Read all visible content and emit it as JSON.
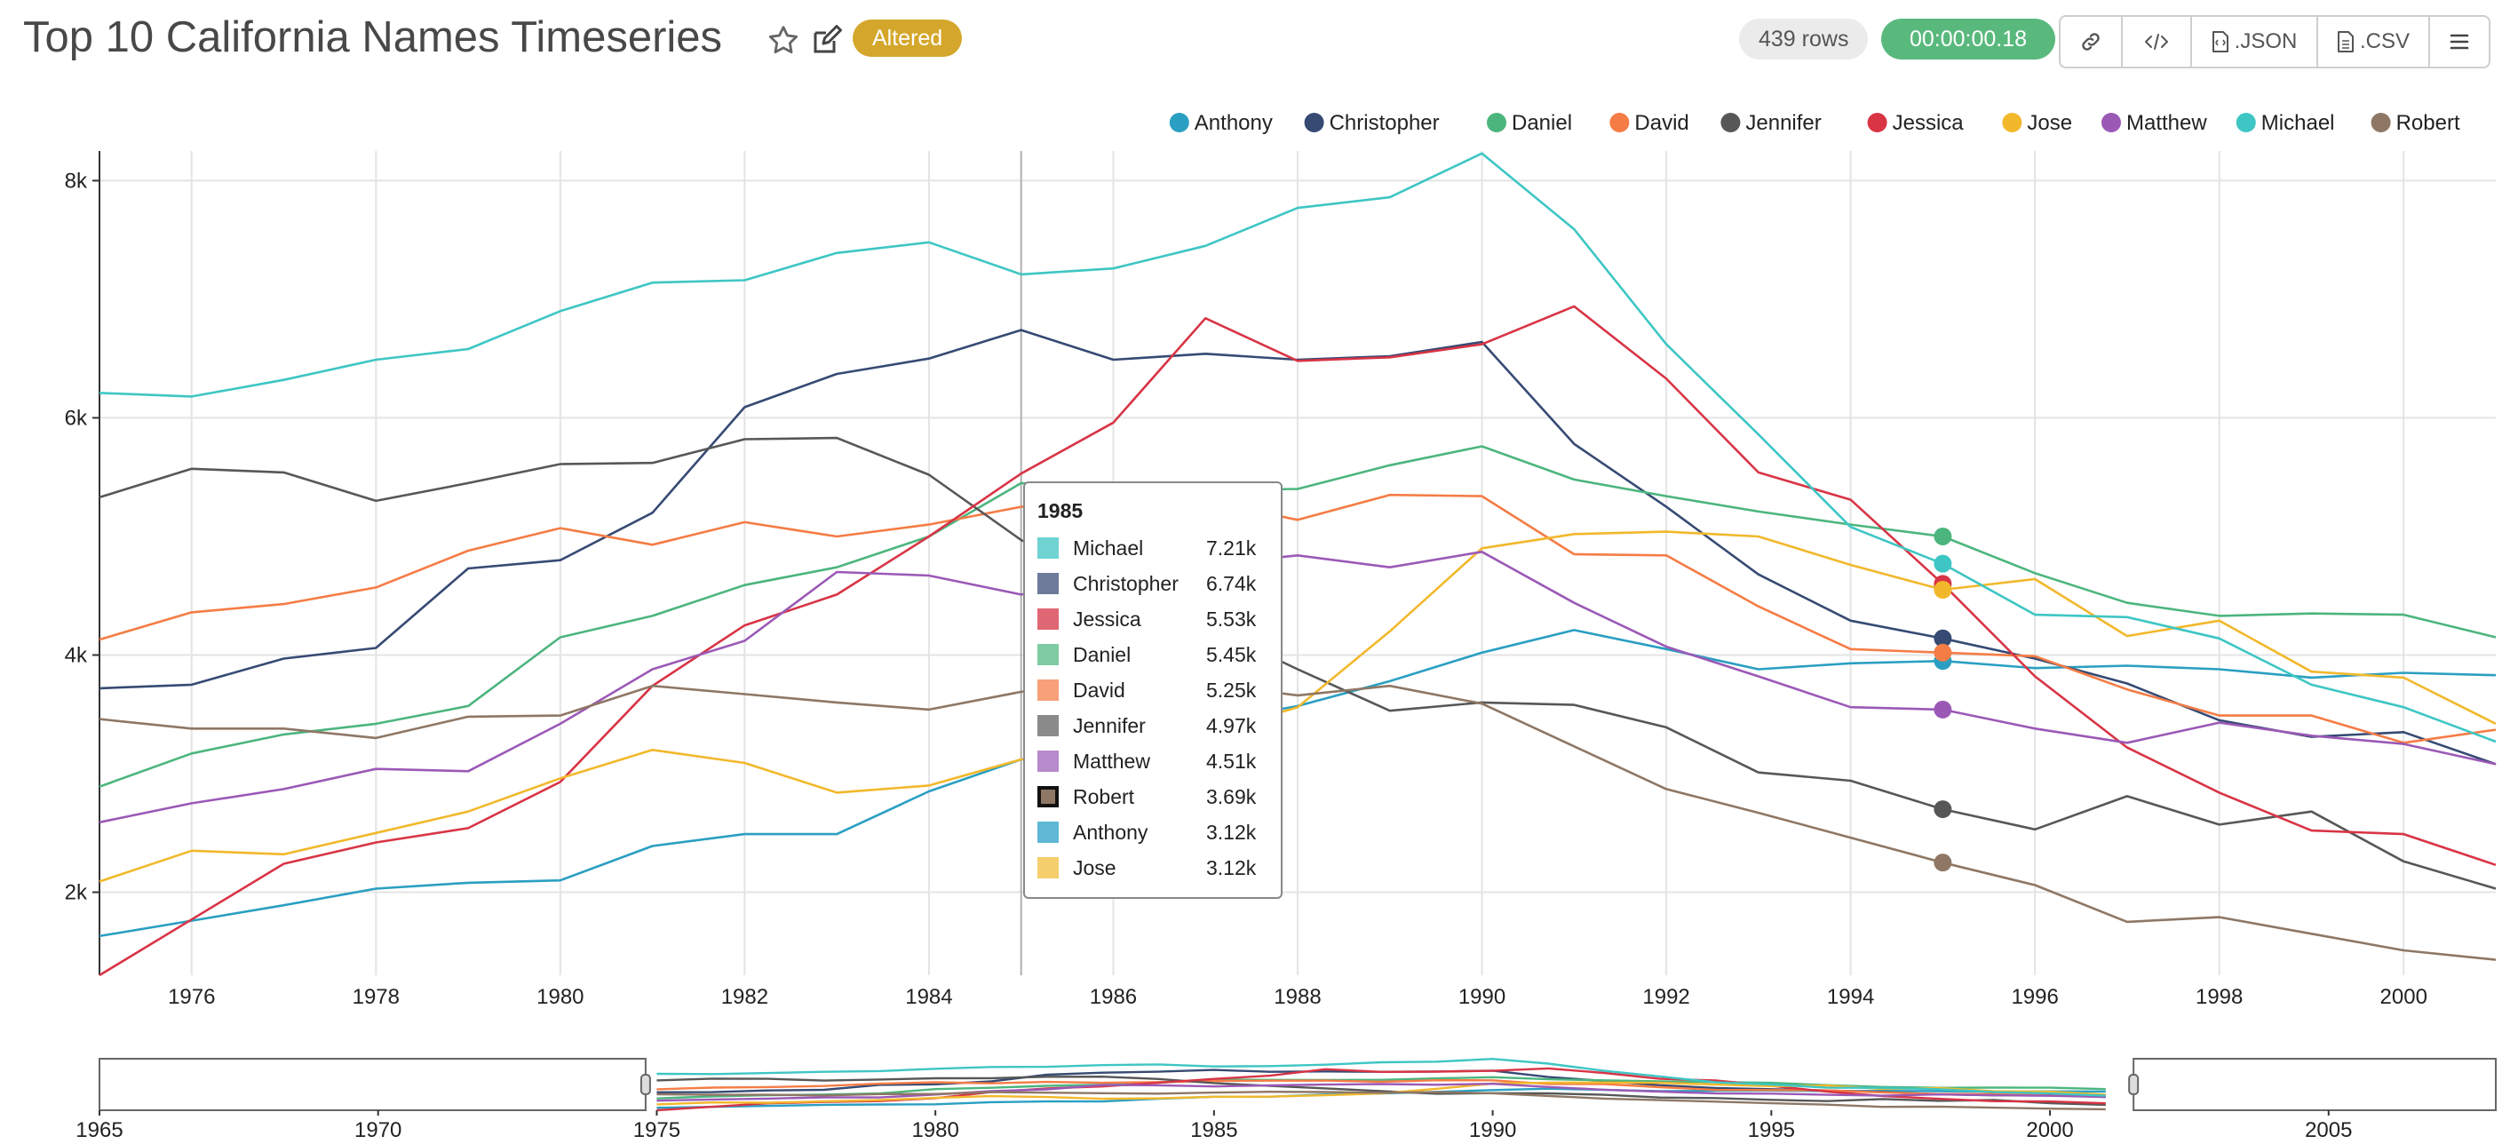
{
  "header": {
    "title": "Top 10 California Names Timeseries",
    "altered_label": "Altered",
    "rows_label": "439 rows",
    "timer_label": "00:00:00.18",
    "buttons": {
      "json_label": ".JSON",
      "csv_label": ".CSV"
    },
    "icons": [
      "star-icon",
      "edit-icon",
      "link-icon",
      "code-icon",
      "json-file-icon",
      "csv-file-icon",
      "menu-icon"
    ],
    "colors": {
      "altered": "#d4a72c",
      "timer": "#59b97d"
    }
  },
  "chart_data": {
    "type": "line",
    "x": [
      1975,
      1976,
      1977,
      1978,
      1979,
      1980,
      1981,
      1982,
      1983,
      1984,
      1985,
      1986,
      1987,
      1988,
      1989,
      1990,
      1991,
      1992,
      1993,
      1994,
      1995,
      1996,
      1997,
      1998,
      1999,
      2000,
      2001
    ],
    "xlim": [
      1975,
      2001
    ],
    "ylim": [
      1300,
      8250
    ],
    "yticks": [
      2000,
      4000,
      6000,
      8000
    ],
    "ytick_labels": [
      "2k",
      "4k",
      "6k",
      "8k"
    ],
    "xticks": [
      1976,
      1978,
      1980,
      1982,
      1984,
      1986,
      1988,
      1990,
      1992,
      1994,
      1996,
      1998,
      2000
    ],
    "grid": true,
    "legend_position": "top-right",
    "series": [
      {
        "name": "Anthony",
        "color": "#2a9fc2",
        "values": [
          1630,
          1760,
          1890,
          2030,
          2080,
          2100,
          2390,
          2490,
          2490,
          2850,
          3120,
          3120,
          3430,
          3570,
          3780,
          4020,
          4210,
          4050,
          3880,
          3930,
          3950,
          3890,
          3910,
          3880,
          3810,
          3850,
          3830
        ]
      },
      {
        "name": "Christopher",
        "color": "#364a73",
        "values": [
          3720,
          3750,
          3970,
          4060,
          4730,
          4800,
          5200,
          6090,
          6370,
          6500,
          6740,
          6490,
          6540,
          6490,
          6520,
          6640,
          5780,
          5250,
          4680,
          4290,
          4140,
          3970,
          3760,
          3450,
          3310,
          3350,
          3080
        ]
      },
      {
        "name": "Daniel",
        "color": "#4cb57e",
        "values": [
          2890,
          3170,
          3330,
          3420,
          3570,
          4150,
          4330,
          4590,
          4740,
          5000,
          5450,
          5400,
          5390,
          5400,
          5600,
          5760,
          5480,
          5340,
          5210,
          5100,
          5000,
          4690,
          4440,
          4330,
          4350,
          4340,
          4150
        ]
      },
      {
        "name": "David",
        "color": "#f57c45",
        "values": [
          4130,
          4360,
          4430,
          4570,
          4880,
          5070,
          4930,
          5120,
          5000,
          5100,
          5250,
          5290,
          5300,
          5140,
          5350,
          5340,
          4850,
          4840,
          4410,
          4050,
          4020,
          3990,
          3710,
          3490,
          3490,
          3260,
          3370
        ]
      },
      {
        "name": "Jennifer",
        "color": "#575757",
        "values": [
          5330,
          5570,
          5540,
          5300,
          5450,
          5610,
          5620,
          5820,
          5830,
          5520,
          4970,
          4580,
          4250,
          3880,
          3530,
          3600,
          3580,
          3390,
          3010,
          2940,
          2700,
          2530,
          2810,
          2570,
          2680,
          2260,
          2030
        ]
      },
      {
        "name": "Jessica",
        "color": "#d83445",
        "values": [
          1300,
          1770,
          2240,
          2420,
          2540,
          2930,
          3740,
          4250,
          4510,
          5000,
          5530,
          5960,
          6840,
          6480,
          6510,
          6620,
          6940,
          6330,
          5540,
          5310,
          4600,
          3820,
          3220,
          2840,
          2520,
          2490,
          2230
        ]
      },
      {
        "name": "Jose",
        "color": "#f2b82c",
        "values": [
          2090,
          2350,
          2320,
          2500,
          2680,
          2960,
          3200,
          3090,
          2840,
          2900,
          3120,
          3130,
          3330,
          3560,
          4200,
          4900,
          5020,
          5040,
          5000,
          4760,
          4550,
          4640,
          4160,
          4290,
          3860,
          3810,
          3420
        ]
      },
      {
        "name": "Matthew",
        "color": "#9b59b6",
        "values": [
          2590,
          2750,
          2870,
          3040,
          3020,
          3420,
          3880,
          4120,
          4700,
          4670,
          4510,
          4650,
          4760,
          4840,
          4740,
          4870,
          4440,
          4070,
          3820,
          3560,
          3540,
          3380,
          3260,
          3430,
          3320,
          3250,
          3080
        ]
      },
      {
        "name": "Michael",
        "color": "#3ec6c4",
        "values": [
          6210,
          6180,
          6320,
          6490,
          6580,
          6900,
          7140,
          7160,
          7390,
          7480,
          7210,
          7260,
          7450,
          7770,
          7860,
          8230,
          7590,
          6620,
          5860,
          5080,
          4770,
          4340,
          4320,
          4140,
          3750,
          3560,
          3270
        ]
      },
      {
        "name": "Robert",
        "color": "#8e7765",
        "values": [
          3460,
          3380,
          3380,
          3300,
          3480,
          3490,
          3740,
          3670,
          3600,
          3540,
          3690,
          3790,
          3760,
          3660,
          3740,
          3590,
          3230,
          2870,
          2670,
          2460,
          2250,
          2060,
          1750,
          1790,
          1650,
          1510,
          1430
        ]
      }
    ],
    "highlight_x": 1995,
    "crosshair_x": 1985,
    "tooltip": {
      "title": "1985",
      "rows": [
        {
          "name": "Michael",
          "value": "7.21k",
          "color": "#6fd3d1"
        },
        {
          "name": "Christopher",
          "value": "6.74k",
          "color": "#6e7a99"
        },
        {
          "name": "Jessica",
          "value": "5.53k",
          "color": "#e06774"
        },
        {
          "name": "Daniel",
          "value": "5.45k",
          "color": "#7fcba3"
        },
        {
          "name": "David",
          "value": "5.25k",
          "color": "#f7a07a"
        },
        {
          "name": "Jennifer",
          "value": "4.97k",
          "color": "#8a8a8a"
        },
        {
          "name": "Matthew",
          "value": "4.51k",
          "color": "#b68acb"
        },
        {
          "name": "Robert",
          "value": "3.69k",
          "color": "#8e7765"
        },
        {
          "name": "Anthony",
          "value": "3.12k",
          "color": "#5fb8d6"
        },
        {
          "name": "Jose",
          "value": "3.12k",
          "color": "#f6cf6d"
        }
      ]
    },
    "brush": {
      "xlim": [
        1965,
        2008
      ],
      "xticks": [
        1965,
        1970,
        1975,
        1980,
        1985,
        1990,
        1995,
        2000,
        2005
      ],
      "selection": [
        1974.8,
        2001.5
      ]
    }
  }
}
